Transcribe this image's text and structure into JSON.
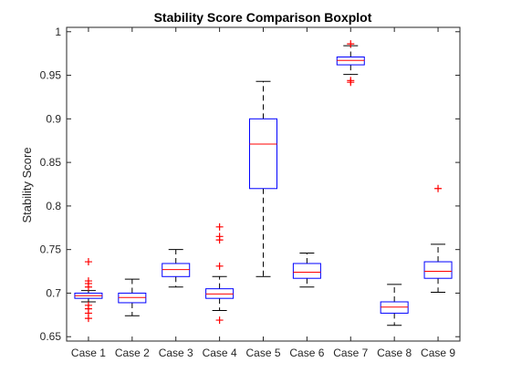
{
  "chart_data": {
    "type": "boxplot",
    "title": "Stability Score Comparison Boxplot",
    "ylabel": "Stability Score",
    "xlabel": "",
    "ylim": [
      0.645,
      1.005
    ],
    "yticks": [
      0.65,
      0.7,
      0.75,
      0.8,
      0.85,
      0.9,
      0.95,
      1
    ],
    "ytick_labels": [
      "0.65",
      "0.7",
      "0.75",
      "0.8",
      "0.85",
      "0.9",
      "0.95",
      "1"
    ],
    "grid": false,
    "colors": {
      "box": "#0000ff",
      "median": "#ff0000",
      "whisker": "#000000",
      "outlier": "#ff0000",
      "axis": "#262626"
    },
    "categories": [
      "Case 1",
      "Case 2",
      "Case 3",
      "Case 4",
      "Case 5",
      "Case 6",
      "Case 7",
      "Case 8",
      "Case 9"
    ],
    "boxes": [
      {
        "category": "Case 1",
        "whisker_low": 0.69,
        "q1": 0.694,
        "median": 0.697,
        "q3": 0.7,
        "whisker_high": 0.703,
        "outliers": [
          0.671,
          0.677,
          0.682,
          0.686,
          0.707,
          0.711,
          0.714,
          0.736
        ]
      },
      {
        "category": "Case 2",
        "whisker_low": 0.674,
        "q1": 0.689,
        "median": 0.695,
        "q3": 0.7,
        "whisker_high": 0.716,
        "outliers": []
      },
      {
        "category": "Case 3",
        "whisker_low": 0.707,
        "q1": 0.719,
        "median": 0.727,
        "q3": 0.734,
        "whisker_high": 0.75,
        "outliers": []
      },
      {
        "category": "Case 4",
        "whisker_low": 0.68,
        "q1": 0.694,
        "median": 0.699,
        "q3": 0.705,
        "whisker_high": 0.719,
        "outliers": [
          0.669,
          0.731,
          0.761,
          0.765,
          0.776
        ]
      },
      {
        "category": "Case 5",
        "whisker_low": 0.719,
        "q1": 0.82,
        "median": 0.871,
        "q3": 0.9,
        "whisker_high": 0.943,
        "outliers": []
      },
      {
        "category": "Case 6",
        "whisker_low": 0.707,
        "q1": 0.717,
        "median": 0.724,
        "q3": 0.734,
        "whisker_high": 0.746,
        "outliers": []
      },
      {
        "category": "Case 7",
        "whisker_low": 0.951,
        "q1": 0.962,
        "median": 0.967,
        "q3": 0.971,
        "whisker_high": 0.984,
        "outliers": [
          0.942,
          0.944,
          0.986
        ]
      },
      {
        "category": "Case 8",
        "whisker_low": 0.663,
        "q1": 0.677,
        "median": 0.684,
        "q3": 0.69,
        "whisker_high": 0.71,
        "outliers": []
      },
      {
        "category": "Case 9",
        "whisker_low": 0.701,
        "q1": 0.717,
        "median": 0.725,
        "q3": 0.736,
        "whisker_high": 0.756,
        "outliers": [
          0.82
        ]
      }
    ]
  }
}
